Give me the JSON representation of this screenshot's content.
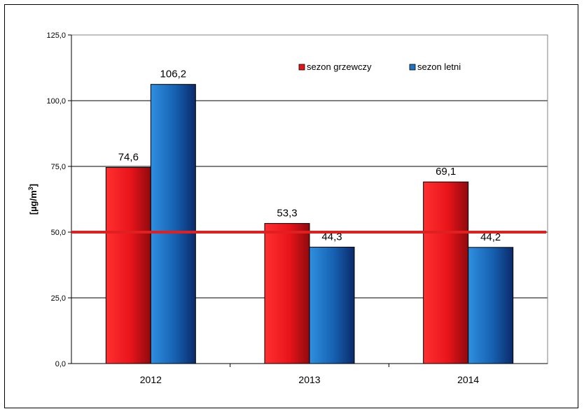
{
  "chart_data": {
    "type": "bar",
    "title": "",
    "xlabel": "",
    "ylabel": "[µg/m³]",
    "ylabel_base": "[µg/m",
    "ylabel_sup": "3",
    "ylabel_end": "]",
    "ylim": [
      0,
      125
    ],
    "yticks": [
      0,
      25,
      50,
      75,
      100,
      125
    ],
    "ytick_labels": [
      "0,0",
      "25,0",
      "50,0",
      "75,0",
      "100,0",
      "125,0"
    ],
    "categories": [
      "2012",
      "2013",
      "2014"
    ],
    "series": [
      {
        "name": "sezon grzewczy",
        "values": [
          74.6,
          53.3,
          69.1
        ],
        "labels": [
          "74,6",
          "53,3",
          "69,1"
        ],
        "color": "#e8141a"
      },
      {
        "name": "sezon letni",
        "values": [
          106.2,
          44.3,
          44.2
        ],
        "labels": [
          "106,2",
          "44,3",
          "44,2"
        ],
        "color": "#1f74c4"
      }
    ],
    "reference_line": {
      "value": 50,
      "color": "#e02020"
    },
    "grid": true,
    "legend_position": "top-right"
  }
}
